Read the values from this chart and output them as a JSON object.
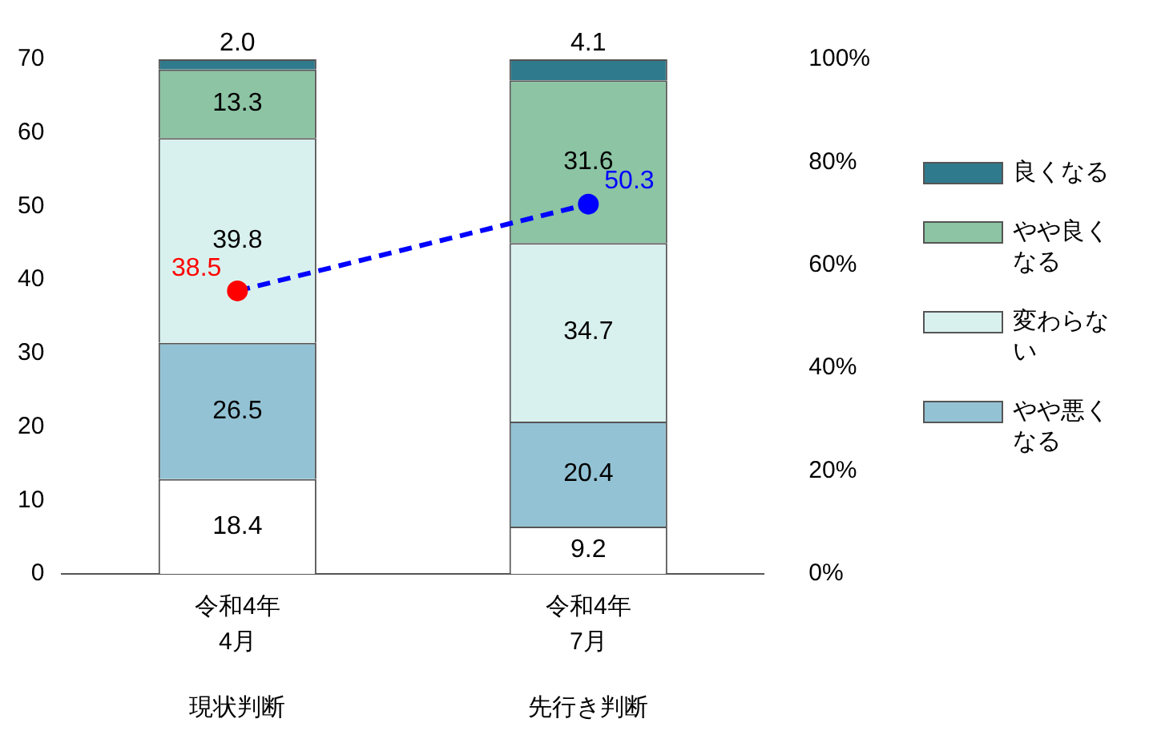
{
  "chart_data": {
    "type": "bar",
    "stacked": true,
    "categories": [
      "令和4年\n4月",
      "令和4年\n7月"
    ],
    "annotations": [
      "現状判断",
      "先行き判断"
    ],
    "series": [
      {
        "color": "#ffffff",
        "values": [
          18.4,
          9.2
        ],
        "axis": "y2"
      },
      {
        "name": "やや悪くなる",
        "color": "#93c2d4",
        "values": [
          26.5,
          20.4
        ],
        "axis": "y2"
      },
      {
        "name": "変わらない",
        "color": "#d9f1ee",
        "values": [
          39.8,
          34.7
        ],
        "axis": "y2"
      },
      {
        "name": "やや良くなる",
        "color": "#8cc4a4",
        "values": [
          13.3,
          31.6
        ],
        "axis": "y2"
      },
      {
        "name": "良くなる",
        "color": "#2f7a8c",
        "values": [
          2.0,
          4.1
        ],
        "value_labels": [
          "2.0",
          "4.1"
        ],
        "axis": "y2"
      },
      {
        "type": "line",
        "color": "#0000ff",
        "colors": [
          "#ff0000",
          "#0000ff"
        ],
        "values": [
          38.5,
          50.3
        ],
        "axis": "y",
        "line_style": "dashed",
        "marker": "circle"
      }
    ],
    "ylim": [
      0,
      70
    ],
    "yticks": [
      0,
      10,
      20,
      30,
      40,
      50,
      60,
      70
    ],
    "y2lim": [
      0,
      100
    ],
    "y2ticks": [
      {
        "value": 0,
        "label": "0%"
      },
      {
        "value": 20,
        "label": "20%"
      },
      {
        "value": 40,
        "label": "40%"
      },
      {
        "value": 60,
        "label": "60%"
      },
      {
        "value": 80,
        "label": "80%"
      },
      {
        "value": 100,
        "label": "100%"
      }
    ],
    "data_labels": true,
    "legend": "right",
    "grid": false
  }
}
